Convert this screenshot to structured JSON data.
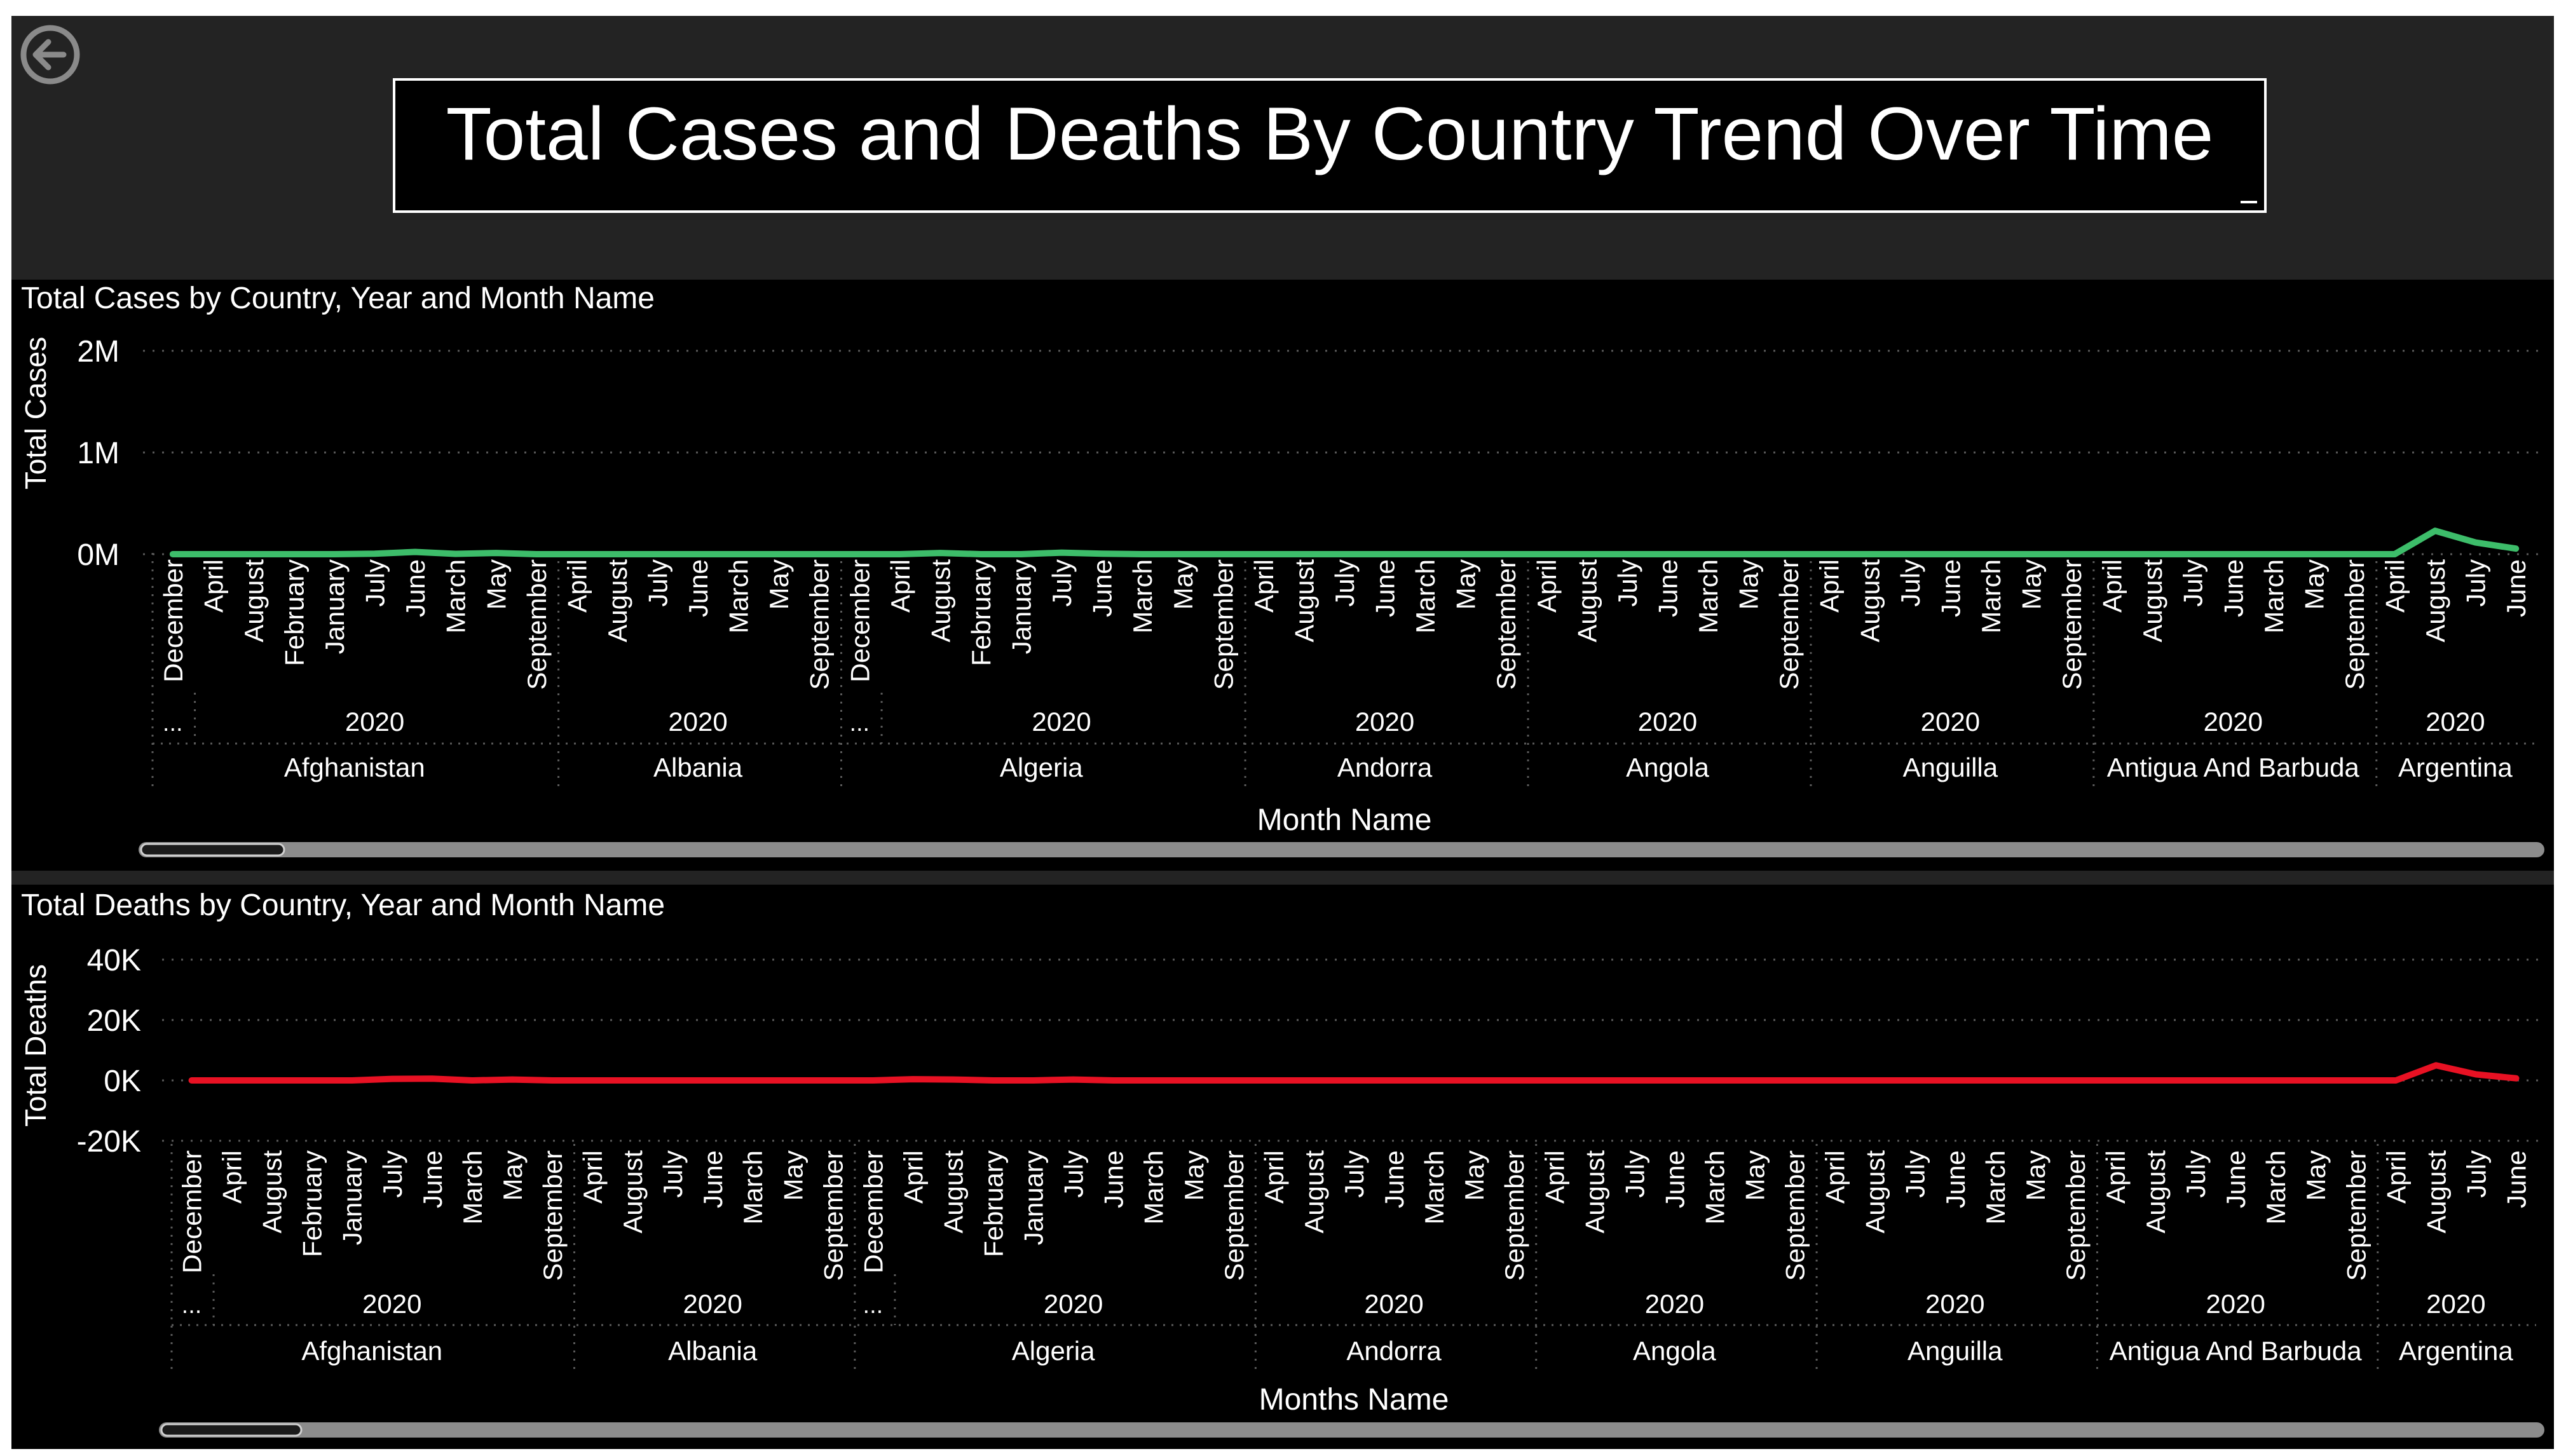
{
  "report": {
    "title": "Total Cases and Deaths By Country Trend Over Time",
    "back_icon": "back-arrow-icon"
  },
  "colors": {
    "background": "#000000",
    "header_band": "#232323",
    "cases_line": "#3dbd6a",
    "deaths_line": "#e81123",
    "grid": "#5a5a5a",
    "scrollbar_track": "#8c8c8c",
    "scrollbar_thumb": "#1b1b1b"
  },
  "chart_data": [
    {
      "type": "line",
      "title": "Total Cases by Country, Year and Month Name",
      "xlabel": "Month Name",
      "ylabel": "Total Cases",
      "ylim": [
        0,
        2000000
      ],
      "yticks": [
        0,
        1000000,
        2000000
      ],
      "ytick_labels": [
        "0M",
        "1M",
        "2M"
      ],
      "grid": true,
      "groups": [
        {
          "country": "Afghanistan",
          "year": "2020",
          "lead": "...",
          "months": [
            "December",
            "April",
            "August",
            "February",
            "January",
            "July",
            "June",
            "March",
            "May",
            "September"
          ]
        },
        {
          "country": "Albania",
          "year": "2020",
          "months": [
            "April",
            "August",
            "July",
            "June",
            "March",
            "May",
            "September"
          ]
        },
        {
          "country": "Algeria",
          "year": "2020",
          "lead": "...",
          "months": [
            "December",
            "April",
            "August",
            "February",
            "January",
            "July",
            "June",
            "March",
            "May",
            "September"
          ]
        },
        {
          "country": "Andorra",
          "year": "2020",
          "months": [
            "April",
            "August",
            "July",
            "June",
            "March",
            "May",
            "September"
          ]
        },
        {
          "country": "Angola",
          "year": "2020",
          "months": [
            "April",
            "August",
            "July",
            "June",
            "March",
            "May",
            "September"
          ]
        },
        {
          "country": "Anguilla",
          "year": "2020",
          "months": [
            "April",
            "August",
            "July",
            "June",
            "March",
            "May",
            "September"
          ]
        },
        {
          "country": "Antigua And Barbuda",
          "year": "2020",
          "months": [
            "April",
            "August",
            "July",
            "June",
            "March",
            "May",
            "September"
          ]
        },
        {
          "country": "Argentina",
          "year": "2020",
          "months": [
            "April",
            "August",
            "July",
            "June"
          ]
        }
      ],
      "series": [
        {
          "values": [
            0,
            0,
            0,
            0,
            0,
            5000,
            22000,
            3000,
            12000,
            0,
            0,
            0,
            0,
            0,
            0,
            0,
            0,
            0,
            0,
            12000,
            0,
            0,
            15000,
            5000,
            0,
            0,
            0,
            0,
            0,
            0,
            0,
            0,
            0,
            0,
            0,
            0,
            0,
            0,
            0,
            0,
            0,
            0,
            0,
            0,
            0,
            0,
            0,
            0,
            0,
            0,
            0,
            0,
            0,
            0,
            0,
            0,
            230000,
            115000,
            55000
          ]
        }
      ]
    },
    {
      "type": "line",
      "title": "Total Deaths by Country, Year and Month Name",
      "xlabel": "Months Name",
      "ylabel": "Total Deaths",
      "ylim": [
        -20000,
        40000
      ],
      "yticks": [
        -20000,
        0,
        20000,
        40000
      ],
      "ytick_labels": [
        "-20K",
        "0K",
        "20K",
        "40K"
      ],
      "grid": true,
      "groups": [
        {
          "country": "Afghanistan",
          "year": "2020",
          "lead": "...",
          "months": [
            "December",
            "April",
            "August",
            "February",
            "January",
            "July",
            "June",
            "March",
            "May",
            "September"
          ]
        },
        {
          "country": "Albania",
          "year": "2020",
          "months": [
            "April",
            "August",
            "July",
            "June",
            "March",
            "May",
            "September"
          ]
        },
        {
          "country": "Algeria",
          "year": "2020",
          "lead": "...",
          "months": [
            "December",
            "April",
            "August",
            "February",
            "January",
            "July",
            "June",
            "March",
            "May",
            "September"
          ]
        },
        {
          "country": "Andorra",
          "year": "2020",
          "months": [
            "April",
            "August",
            "July",
            "June",
            "March",
            "May",
            "September"
          ]
        },
        {
          "country": "Angola",
          "year": "2020",
          "months": [
            "April",
            "August",
            "July",
            "June",
            "March",
            "May",
            "September"
          ]
        },
        {
          "country": "Anguilla",
          "year": "2020",
          "months": [
            "April",
            "August",
            "July",
            "June",
            "March",
            "May",
            "September"
          ]
        },
        {
          "country": "Antigua And Barbuda",
          "year": "2020",
          "months": [
            "April",
            "August",
            "July",
            "June",
            "March",
            "May",
            "September"
          ]
        },
        {
          "country": "Argentina",
          "year": "2020",
          "months": [
            "April",
            "August",
            "July",
            "June"
          ]
        }
      ],
      "series": [
        {
          "values": [
            0,
            0,
            0,
            0,
            0,
            500,
            600,
            0,
            300,
            0,
            0,
            0,
            0,
            0,
            0,
            0,
            0,
            0,
            400,
            300,
            0,
            0,
            300,
            0,
            0,
            0,
            0,
            0,
            0,
            0,
            0,
            0,
            0,
            0,
            0,
            0,
            0,
            0,
            0,
            0,
            0,
            0,
            0,
            0,
            0,
            0,
            0,
            0,
            0,
            0,
            0,
            0,
            0,
            0,
            0,
            0,
            5000,
            2000,
            700
          ]
        }
      ]
    }
  ]
}
